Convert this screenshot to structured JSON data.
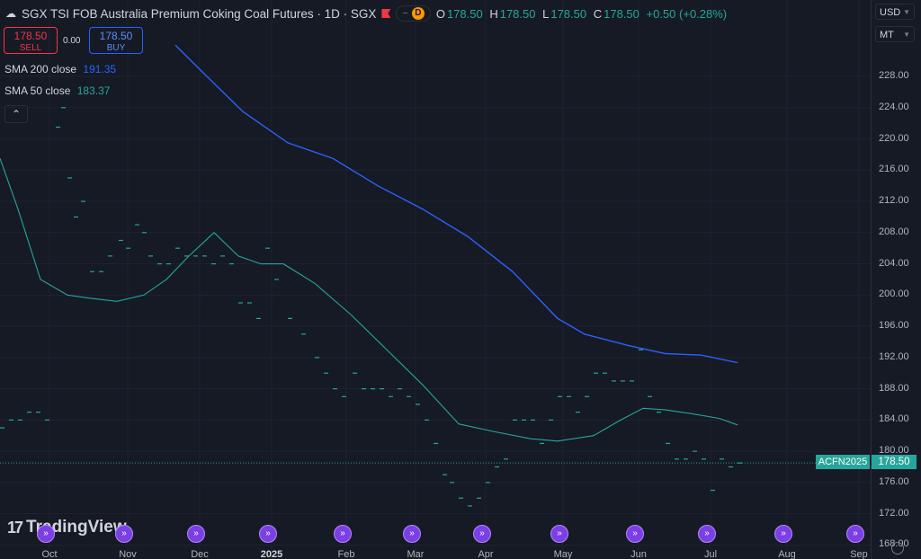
{
  "header": {
    "title": "SGX TSI FOB Australia Premium Coking Coal Futures · 1D · SGX",
    "pill_dash": "−",
    "interval_badge": "D",
    "ohlc": [
      {
        "label": "O",
        "value": "178.50"
      },
      {
        "label": "H",
        "value": "178.50"
      },
      {
        "label": "L",
        "value": "178.50"
      },
      {
        "label": "C",
        "value": "178.50"
      }
    ],
    "change": "+0.50 (+0.28%)"
  },
  "trade": {
    "sell_price": "178.50",
    "sell_label": "SELL",
    "spread": "0.00",
    "buy_price": "178.50",
    "buy_label": "BUY"
  },
  "indicators": [
    {
      "label": "SMA 200 close",
      "value": "191.35",
      "color": "#2962ff"
    },
    {
      "label": "SMA 50 close",
      "value": "183.37",
      "color": "#26a69a"
    }
  ],
  "price_axis": {
    "currency": "USD",
    "unit": "MT",
    "ticks": [
      "228.00",
      "224.00",
      "220.00",
      "216.00",
      "212.00",
      "208.00",
      "204.00",
      "200.00",
      "196.00",
      "192.00",
      "188.00",
      "184.00",
      "180.00",
      "176.00",
      "172.00",
      "168.00"
    ],
    "last_price": "178.50",
    "symbol_tag": "ACFN2025"
  },
  "time_axis": {
    "ticks": [
      "Oct",
      "Nov",
      "Dec",
      "2025",
      "Feb",
      "Mar",
      "Apr",
      "May",
      "Jun",
      "Jul",
      "Aug",
      "Sep"
    ]
  },
  "logo_text": "TradingView",
  "colors": {
    "background": "#161a25",
    "up": "#26a69a",
    "down": "#f23645",
    "sma200": "#2962ff",
    "sma50": "#26a69a"
  },
  "chart_data": {
    "type": "line",
    "series": [
      {
        "name": "SMA 200 close",
        "x": [
          195,
          230,
          270,
          320,
          370,
          420,
          470,
          520,
          570,
          620,
          650,
          700,
          740,
          780,
          820
        ],
        "y": [
          232,
          228,
          223.5,
          219.5,
          217.5,
          214,
          211,
          207.5,
          203,
          197,
          195,
          193.5,
          192.5,
          192.3,
          191.35
        ]
      },
      {
        "name": "SMA 50 close",
        "x": [
          0,
          20,
          45,
          75,
          100,
          130,
          160,
          185,
          210,
          238,
          265,
          290,
          315,
          350,
          390,
          430,
          470,
          510,
          550,
          590,
          620,
          660,
          690,
          715,
          740,
          770,
          800,
          820
        ],
        "y": [
          217.5,
          211,
          202,
          200,
          199.6,
          199.2,
          200,
          202,
          205,
          208,
          205,
          204,
          204,
          201.5,
          197.5,
          193,
          188.5,
          183.5,
          182.5,
          181.6,
          181.3,
          182,
          184,
          185.5,
          185.3,
          184.8,
          184.2,
          183.37
        ]
      },
      {
        "name": "price",
        "x": [
          0,
          10,
          20,
          30,
          40,
          50,
          62,
          68,
          75,
          82,
          90,
          100,
          110,
          120,
          132,
          140,
          150,
          158,
          165,
          175,
          185,
          195,
          205,
          215,
          225,
          235,
          245,
          255,
          265,
          275,
          285,
          295,
          305,
          320,
          335,
          350,
          360,
          370,
          380,
          392,
          402,
          412,
          422,
          432,
          442,
          452,
          462,
          472,
          482,
          492,
          500,
          510,
          520,
          530,
          540,
          550,
          560,
          570,
          580,
          590,
          600,
          610,
          620,
          630,
          640,
          650,
          660,
          670,
          680,
          690,
          700,
          710,
          720,
          730,
          740,
          750,
          760,
          770,
          780,
          790,
          800,
          810,
          820
        ],
        "y": [
          183,
          184,
          184,
          185,
          185,
          184,
          221.5,
          224,
          215,
          210,
          212,
          203,
          203,
          205,
          207,
          206,
          209,
          208,
          205,
          204,
          204,
          206,
          205,
          205,
          205,
          204,
          205,
          204,
          199,
          199,
          197,
          206,
          202,
          197,
          195,
          192,
          190,
          188,
          187,
          190,
          188,
          188,
          188,
          187,
          188,
          187,
          186,
          184,
          181,
          177,
          176,
          174,
          173,
          174,
          176,
          178,
          179,
          184,
          184,
          184,
          181,
          184,
          187,
          187,
          185,
          187,
          190,
          190,
          189,
          189,
          189,
          193,
          187,
          185,
          181,
          179,
          179,
          180,
          179,
          175,
          179,
          178,
          178.5
        ]
      }
    ],
    "ylim": [
      168,
      232
    ],
    "y_ticks": [
      228,
      224,
      220,
      216,
      212,
      208,
      204,
      200,
      196,
      192,
      188,
      184,
      180,
      176,
      172,
      168
    ],
    "x_categories": [
      "Oct",
      "Nov",
      "Dec",
      "2025",
      "Feb",
      "Mar",
      "Apr",
      "May",
      "Jun",
      "Jul",
      "Aug",
      "Sep"
    ],
    "last_value": 178.5,
    "grid": true
  }
}
